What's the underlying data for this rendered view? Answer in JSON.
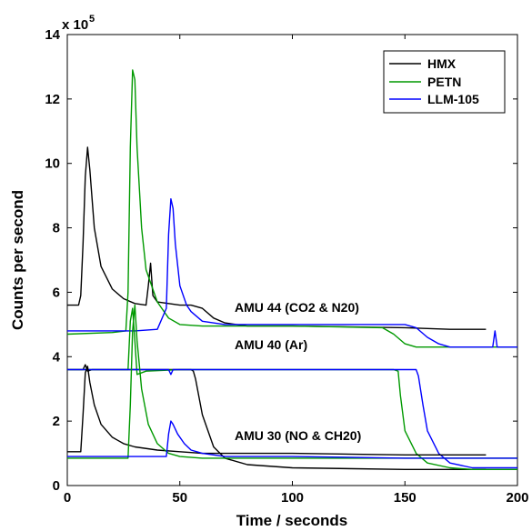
{
  "chart_data": {
    "type": "line",
    "xlabel": "Time / seconds",
    "ylabel": "Counts per second",
    "y_multiplier_label": "x 10",
    "y_multiplier_exponent": "5",
    "xlim": [
      0,
      200
    ],
    "ylim": [
      0,
      14
    ],
    "x_ticks": [
      "0",
      "50",
      "100",
      "150",
      "200"
    ],
    "y_ticks": [
      "0",
      "2",
      "4",
      "6",
      "8",
      "10",
      "12",
      "14"
    ],
    "grid": false,
    "legend_position": "top-right",
    "legend": [
      "HMX",
      "PETN",
      "LLM-105"
    ],
    "colors": {
      "HMX": "#000000",
      "PETN": "#009900",
      "LLM-105": "#0000ff"
    },
    "annotations": [
      {
        "text": "AMU 44 (CO2 & N20)",
        "x": 75,
        "y": 5.1
      },
      {
        "text": "AMU 40 (Ar)",
        "x": 75,
        "y": 3.95
      },
      {
        "text": "AMU 30 (NO & CH20)",
        "x": 75,
        "y": 1.15
      }
    ],
    "series": [
      {
        "name": "HMX",
        "group": "AMU 44",
        "x": [
          0,
          5,
          6,
          7,
          8,
          9,
          10,
          12,
          15,
          20,
          25,
          30,
          35,
          36,
          37,
          38,
          40,
          45,
          50,
          55,
          60,
          65,
          70,
          80,
          100,
          150,
          170,
          186
        ],
        "y": [
          5.6,
          5.6,
          5.9,
          7.5,
          9.6,
          10.5,
          9.8,
          8.0,
          6.8,
          6.1,
          5.8,
          5.65,
          5.6,
          6.2,
          6.9,
          5.9,
          5.7,
          5.65,
          5.6,
          5.6,
          5.5,
          5.2,
          5.05,
          4.95,
          4.95,
          4.9,
          4.85,
          4.85
        ]
      },
      {
        "name": "PETN",
        "group": "AMU 44",
        "x": [
          0,
          20,
          26,
          27,
          28,
          29,
          30,
          31,
          33,
          35,
          40,
          45,
          50,
          60,
          70,
          100,
          140,
          145,
          150,
          155,
          160,
          170,
          200
        ],
        "y": [
          4.7,
          4.75,
          4.8,
          6.0,
          10.5,
          12.9,
          12.6,
          10.5,
          8.0,
          6.7,
          5.7,
          5.2,
          5.0,
          4.95,
          4.95,
          4.95,
          4.9,
          4.7,
          4.4,
          4.3,
          4.3,
          4.3,
          4.3
        ]
      },
      {
        "name": "LLM-105",
        "group": "AMU 44",
        "x": [
          0,
          30,
          40,
          44,
          45,
          46,
          47,
          48,
          50,
          53,
          55,
          60,
          70,
          100,
          150,
          155,
          160,
          165,
          170,
          189,
          190,
          191,
          200
        ],
        "y": [
          4.8,
          4.8,
          4.85,
          5.5,
          7.8,
          8.9,
          8.6,
          7.5,
          6.2,
          5.6,
          5.4,
          5.1,
          5.0,
          5.0,
          5.0,
          4.9,
          4.6,
          4.4,
          4.3,
          4.3,
          4.8,
          4.3,
          4.3
        ]
      },
      {
        "name": "HMX",
        "group": "AMU 40",
        "x": [
          0,
          7,
          8,
          9,
          11,
          15,
          30,
          50,
          55,
          56,
          57,
          60,
          65,
          70,
          80,
          100,
          150,
          186
        ],
        "y": [
          3.6,
          3.6,
          3.75,
          3.55,
          3.6,
          3.6,
          3.6,
          3.6,
          3.6,
          3.55,
          3.3,
          2.2,
          1.2,
          0.85,
          0.65,
          0.55,
          0.5,
          0.5
        ]
      },
      {
        "name": "PETN",
        "group": "AMU 40",
        "x": [
          0,
          27,
          28,
          29,
          30,
          31,
          35,
          50,
          100,
          145,
          147,
          148,
          150,
          155,
          160,
          170,
          180,
          200
        ],
        "y": [
          3.6,
          3.6,
          5.1,
          5.5,
          4.5,
          3.45,
          3.55,
          3.6,
          3.6,
          3.6,
          3.55,
          2.8,
          1.7,
          1.0,
          0.7,
          0.55,
          0.5,
          0.5
        ]
      },
      {
        "name": "LLM-105",
        "group": "AMU 40",
        "x": [
          0,
          45,
          46,
          47,
          50,
          100,
          155,
          156,
          158,
          160,
          165,
          170,
          180,
          200
        ],
        "y": [
          3.6,
          3.6,
          3.45,
          3.6,
          3.6,
          3.6,
          3.6,
          3.4,
          2.5,
          1.7,
          1.0,
          0.7,
          0.55,
          0.55
        ]
      },
      {
        "name": "HMX",
        "group": "AMU 30",
        "x": [
          0,
          6,
          7,
          8,
          9,
          10,
          12,
          15,
          20,
          25,
          30,
          40,
          50,
          60,
          100,
          150,
          186
        ],
        "y": [
          1.05,
          1.05,
          2.2,
          3.5,
          3.7,
          3.2,
          2.5,
          1.9,
          1.5,
          1.3,
          1.2,
          1.1,
          1.05,
          1.0,
          1.0,
          0.95,
          0.95
        ]
      },
      {
        "name": "PETN",
        "group": "AMU 30",
        "x": [
          0,
          27,
          28,
          29,
          30,
          31,
          33,
          36,
          40,
          45,
          50,
          60,
          100,
          150,
          200
        ],
        "y": [
          0.85,
          0.85,
          2.5,
          4.8,
          5.6,
          4.5,
          3.0,
          1.9,
          1.3,
          1.0,
          0.9,
          0.85,
          0.85,
          0.85,
          0.85
        ]
      },
      {
        "name": "LLM-105",
        "group": "AMU 30",
        "x": [
          0,
          44,
          45,
          46,
          47,
          49,
          52,
          55,
          60,
          70,
          100,
          150,
          200
        ],
        "y": [
          0.9,
          0.9,
          1.6,
          2.0,
          1.9,
          1.6,
          1.3,
          1.1,
          1.0,
          0.9,
          0.9,
          0.85,
          0.85
        ]
      }
    ]
  }
}
